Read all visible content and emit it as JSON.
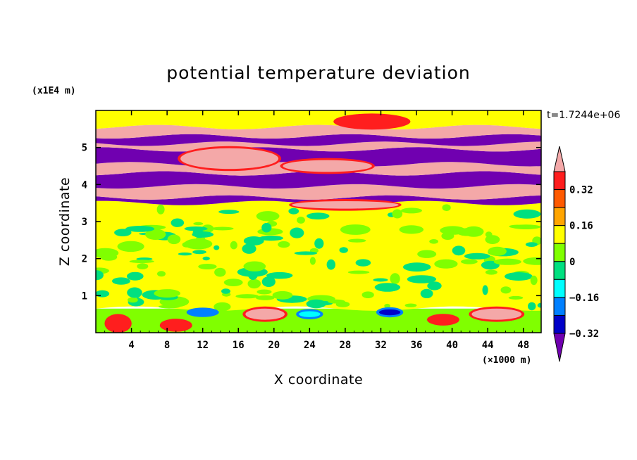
{
  "chart_data": {
    "type": "heatmap",
    "title": "potential temperature deviation",
    "xlabel": "X coordinate",
    "ylabel": "Z coordinate",
    "x_unit": "(×1000 m)",
    "y_unit": "(x1E4 m)",
    "time_label": "t=1.7244e+06",
    "xlim": [
      0,
      50
    ],
    "ylim": [
      0,
      6
    ],
    "x_ticks": [
      4,
      8,
      12,
      16,
      20,
      24,
      28,
      32,
      36,
      40,
      44,
      48
    ],
    "y_ticks": [
      1,
      2,
      3,
      4,
      5
    ],
    "legend_position": "right",
    "colorbar": {
      "levels": [
        -0.48,
        -0.4,
        -0.32,
        -0.24,
        -0.16,
        -0.08,
        0,
        0.08,
        0.16,
        0.24,
        0.32,
        0.4,
        0.48
      ],
      "labeled_levels": [
        "0.32",
        "0.16",
        "0",
        "−0.16",
        "−0.32"
      ],
      "labeled_values": [
        0.32,
        0.16,
        0,
        -0.16,
        -0.32
      ],
      "colors_high_to_low": [
        "#f4a8a8",
        "#ff1e1e",
        "#ff5a00",
        "#ffa500",
        "#ffff00",
        "#80ff00",
        "#00e080",
        "#00ffff",
        "#0080ff",
        "#0000c8",
        "#7000b0"
      ],
      "over_color": "#f4a8a8",
      "under_color": "#7000b0"
    },
    "bands": [
      {
        "z0": 0,
        "z1": 0.65,
        "value": -0.04
      },
      {
        "z0": 0.65,
        "z1": 3.5,
        "value": 0.0
      },
      {
        "z0": 3.5,
        "z1": 3.65,
        "value": -0.48
      },
      {
        "z0": 3.65,
        "z1": 3.95,
        "value": 0.48
      },
      {
        "z0": 3.95,
        "z1": 4.3,
        "value": -0.48
      },
      {
        "z0": 4.3,
        "z1": 4.55,
        "value": 0.48
      },
      {
        "z0": 4.55,
        "z1": 4.95,
        "value": -0.48
      },
      {
        "z0": 4.95,
        "z1": 5.1,
        "value": 0.48
      },
      {
        "z0": 5.1,
        "z1": 5.3,
        "value": -0.48
      },
      {
        "z0": 5.3,
        "z1": 5.55,
        "value": 0.48
      },
      {
        "z0": 5.55,
        "z1": 6.0,
        "value": 0.0
      }
    ],
    "features": [
      {
        "x": 15,
        "z": 4.7,
        "rx": 5.5,
        "rz": 0.28,
        "value": 0.48
      },
      {
        "x": 26,
        "z": 4.5,
        "rx": 5,
        "rz": 0.16,
        "value": 0.48
      },
      {
        "x": 31,
        "z": 5.7,
        "rx": 4,
        "rz": 0.16,
        "value": 0.24
      },
      {
        "x": 28,
        "z": 3.45,
        "rx": 6,
        "rz": 0.1,
        "value": 0.48
      },
      {
        "x": 19,
        "z": 0.5,
        "rx": 2.2,
        "rz": 0.15,
        "value": 0.48
      },
      {
        "x": 45,
        "z": 0.5,
        "rx": 2.8,
        "rz": 0.15,
        "value": 0.48
      },
      {
        "x": 39,
        "z": 0.35,
        "rx": 1.5,
        "rz": 0.1,
        "value": 0.24
      },
      {
        "x": 2.5,
        "z": 0.25,
        "rx": 1.2,
        "rz": 0.2,
        "value": 0.24
      },
      {
        "x": 9,
        "z": 0.2,
        "rx": 1.5,
        "rz": 0.12,
        "value": 0.24
      },
      {
        "x": 33,
        "z": 0.55,
        "rx": 1.2,
        "rz": 0.08,
        "value": -0.4
      },
      {
        "x": 12,
        "z": 0.55,
        "rx": 1.5,
        "rz": 0.07,
        "value": -0.32
      },
      {
        "x": 24,
        "z": 0.5,
        "rx": 1.2,
        "rz": 0.08,
        "value": -0.24
      }
    ]
  }
}
